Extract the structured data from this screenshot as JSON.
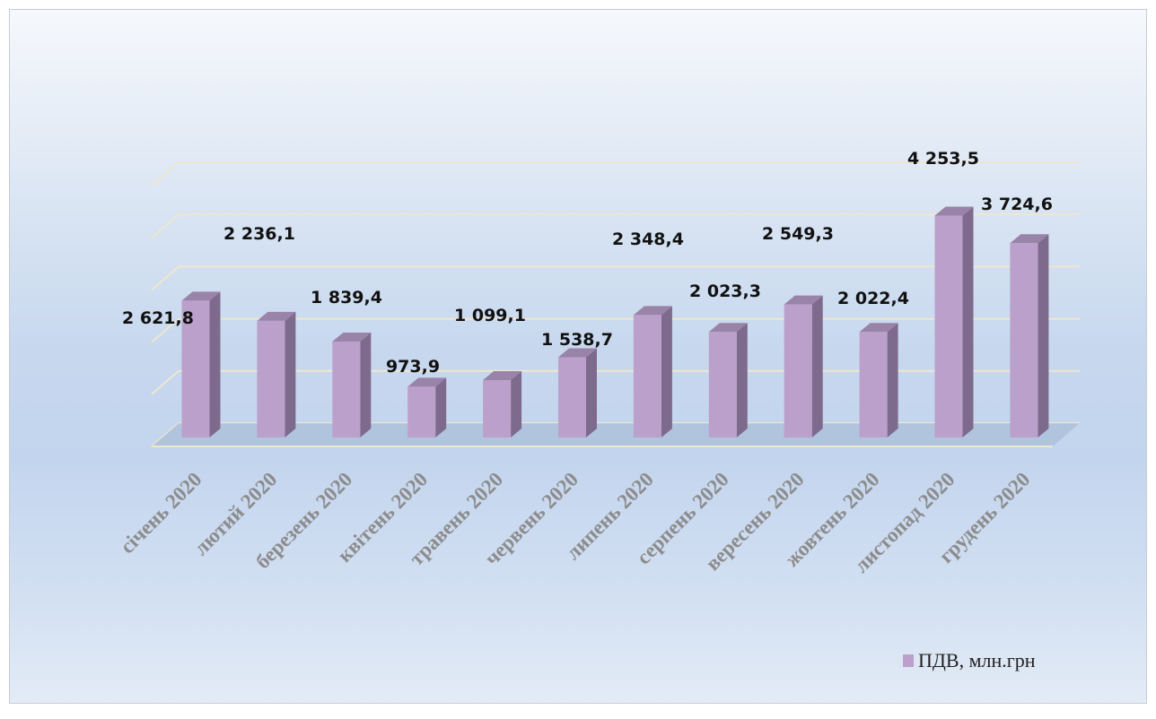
{
  "chart_data": {
    "type": "bar",
    "title": "",
    "xlabel": "",
    "ylabel": "",
    "ylim": [
      0,
      5000
    ],
    "grid": true,
    "legend_position": "bottom-right",
    "categories": [
      "січень 2020",
      "лютий 2020",
      "березень 2020",
      "квітень 2020",
      "травень 2020",
      "червень 2020",
      "липень 2020",
      "серпень 2020",
      "вересень 2020",
      "жовтень 2020",
      "листопад 2020",
      "грудень 2020"
    ],
    "series": [
      {
        "name": "ПДВ, млн.грн",
        "color": "#bba0cb",
        "values": [
          2621.8,
          2236.1,
          1839.4,
          973.9,
          1099.1,
          1538.7,
          2348.4,
          2023.3,
          2549.3,
          2022.4,
          4253.5,
          3724.6
        ],
        "labels": [
          "2 621,8",
          "2 236,1",
          "1 839,4",
          "973,9",
          "1 099,1",
          "1 538,7",
          "2 348,4",
          "2 023,3",
          "2 549,3",
          "2 022,4",
          "4 253,5",
          "3 724,6"
        ]
      }
    ]
  }
}
